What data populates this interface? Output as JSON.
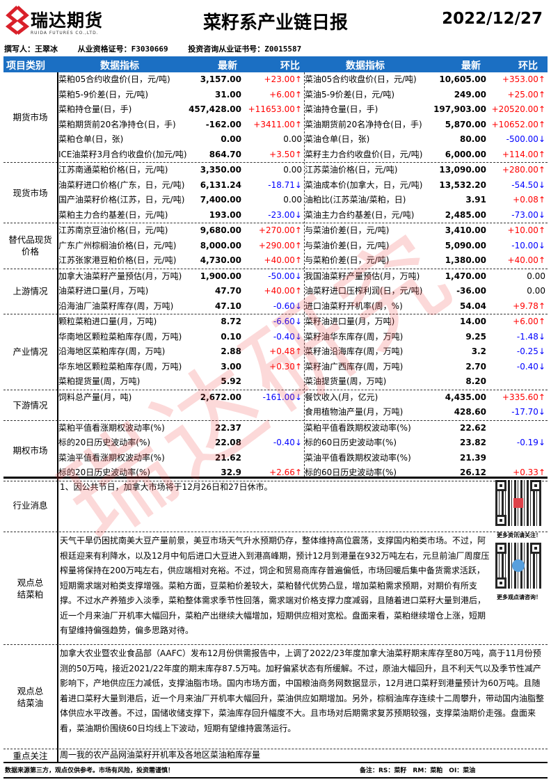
{
  "header": {
    "logo_cn": "瑞达期货",
    "logo_en": "RUIDA FUTURES CO.,LTD.",
    "title": "菜籽系产业链日报",
    "date": "2022/12/27"
  },
  "authors": {
    "writer": "撰写人：王翠冰",
    "license": "从业资格证号：F3030669",
    "advisor": "投资咨询从业证书号：Z0015587"
  },
  "columns": {
    "category": "项目类别",
    "indicator": "数据指标",
    "latest": "最新",
    "change": "环比",
    "indicator2": "数据指标",
    "latest2": "最新",
    "change2": "环比"
  },
  "colors": {
    "header_bg": "#1b6fc3",
    "up": "#ff0000",
    "down": "#0000ff"
  },
  "sections": [
    {
      "label": "期货市场",
      "rows": [
        [
          "菜粕05合约收盘价(日，元/吨)",
          "3,157.00",
          "+23.00↑",
          "菜油05合约收盘价(日，元/吨)",
          "10,605.00",
          "+353.00↑"
        ],
        [
          "菜粕5-9价差(日，元/吨)",
          "31.00",
          "+6.00↑",
          "菜油5-9价差(日，元/吨)",
          "249.00",
          "+25.00↑"
        ],
        [
          "菜粕持仓量(日，手)",
          "457,428.00",
          "+11653.00↑",
          "菜油持仓量(日，手)",
          "197,903.00",
          "+20520.00↑"
        ],
        [
          "菜粕期货前20名净持仓(日，手)",
          "-162.00",
          "+3411.00↑",
          "菜油期货前20名净持仓(日，手)",
          "5,870.00",
          "+10652.00↑"
        ],
        [
          "菜粕仓单(日，张)",
          "0.00",
          "0.00",
          "菜油仓单(日，张)",
          "80.00",
          "-500.00↓"
        ],
        [
          "ICE油菜籽3月合约收盘价(加元/吨)",
          "864.70",
          "+3.50↑",
          "菜籽主力合约收盘价(日，元/吨)",
          "6,000.00",
          "+114.00↑"
        ]
      ]
    },
    {
      "label": "现货市场",
      "rows": [
        [
          "江苏南通菜粕价格(日，元/吨)",
          "3,350.00",
          "0.00",
          "江苏菜油价格(日，元/吨)",
          "13,090.00",
          "+280.00↑"
        ],
        [
          "油菜籽进口价格(广东，日，元/吨)",
          "6,131.24",
          "-18.71↓",
          "菜油成本价(加拿大，日，元/吨)",
          "13,532.20",
          "-54.50↓"
        ],
        [
          "国产油菜籽价格(江苏，日，元/吨)",
          "7,400.00",
          "0.00",
          "油粕比(江苏菜油/菜粕，日)",
          "3.91",
          "+0.08↑"
        ],
        [
          "菜粕主力合约基差(日，元/吨)",
          "193.00",
          "-23.00↓",
          "菜油主力合约基差(日，元/吨)",
          "2,485.00",
          "-73.00↓"
        ]
      ]
    },
    {
      "label": "替代品现货价格",
      "rows": [
        [
          "江苏南京豆油价格(日，元/吨)",
          "9,680.00",
          "+270.00↑",
          "与菜油价差(日，元/吨)",
          "3,410.00",
          "+10.00↑"
        ],
        [
          "广东广州棕榈油价格(日，元/吨)",
          "8,000.00",
          "+290.00↑",
          "与菜油价差(日，元/吨)",
          "5,090.00",
          "-10.00↓"
        ],
        [
          "江苏张家港豆粕价格(日，元/吨)",
          "4,730.00",
          "+40.00↑",
          "与菜粕价差(日，元/吨)",
          "1,380.00",
          "+40.00↑"
        ]
      ]
    },
    {
      "label": "上游情况",
      "rows": [
        [
          "加拿大油菜籽产量预估(月，万吨)",
          "1,900.00",
          "-50.00↓",
          "我国油菜籽产量预估(月，万吨)",
          "1,470.00",
          "0.00"
        ],
        [
          "油菜籽进口量(月，万吨)",
          "47.70",
          "+40.00↑",
          "油菜籽进口压榨利润(日，元/吨)",
          "-36.00",
          "0.00"
        ],
        [
          "沿海油厂油菜籽库存(周，万吨)",
          "47.10",
          "-0.60↓",
          "进口油菜籽开机率(周，%)",
          "54.04",
          "+9.78↑"
        ]
      ]
    },
    {
      "label": "产业情况",
      "rows": [
        [
          "颗粒菜粕进口量(月，万吨)",
          "8.72",
          "-6.60↓",
          "菜籽油进口量(月，万吨)",
          "14.00",
          "+6.00↑"
        ],
        [
          "华南地区颗粒菜粕库存(周，万吨)",
          "0.10",
          "-0.40↓",
          "菜籽油华东库存(周，万吨)",
          "9.25",
          "-1.48↓"
        ],
        [
          "沿海地区菜粕库存(周，万吨)",
          "2.88",
          "+0.48↑",
          "菜籽油沿海库存(周，万吨)",
          "3.2",
          "-0.25↓"
        ],
        [
          "华东地区颗粒菜粕库存(周，万吨)",
          "3.00",
          "+0.30↑",
          "菜籽油广西库存(周，万吨)",
          "2.70",
          "-0.40↓"
        ],
        [
          "菜粕提货量(周，万吨)",
          "5.92",
          "",
          "菜油提货量(周，万吨)",
          "8.20",
          ""
        ]
      ]
    },
    {
      "label": "下游情况",
      "rows": [
        [
          "饲料总产量(月，吨)",
          "2,672.00",
          "-161.00↓",
          "餐饮收入(月，亿元)",
          "4,435.00",
          "+335.60↑"
        ],
        [
          "",
          "",
          "",
          "食用植物油产量(月，万吨)",
          "428.60",
          "-17.70↓"
        ]
      ]
    },
    {
      "label": "期权市场",
      "rows": [
        [
          "菜粕平值看涨期权波动率(%)",
          "22.37",
          "",
          "菜粕平值看跌期权波动率(%)",
          "22.62",
          ""
        ],
        [
          "标的20日历史波动率(%)",
          "22.08",
          "-0.40↓",
          "标的60日历史波动率(%)",
          "23.82",
          "-0.19↓"
        ],
        [
          "菜油平值看涨期权波动率(%)",
          "21.62",
          "",
          "菜油平值看跌期权波动率(%)",
          "21.39",
          ""
        ],
        [
          "标的20日历史波动率(%)",
          "32.9",
          "+2.66↑",
          "标的60日历史波动率(%)",
          "26.12",
          "+0.33↑"
        ]
      ]
    }
  ],
  "news": {
    "label": "行业消息",
    "text": "1、因公共节日，加拿大市场将于12月26日和27日休市。"
  },
  "meal_view": {
    "label": "观点总结菜粕",
    "text": "天气干旱仍困扰南美大豆产量前景，美豆市场天气升水预期仍存，整体维持高位震荡，支撑国内粕类市场。不过，阿根廷迎来有利降水，以及12月中旬后进口大豆进入到港高峰期，预计12月到港量在932万吨左右，元旦前油厂周度压榨量将保持在200万吨左右，供应端相对充裕。不过，饲企和贸易商库存普遍偏低，市场回暖后集中备货需求活跃，短期需求端对粕类支撑增强。菜粕方面，豆菜粕价差较大，菜粕替代优势凸显，增加菜粕需求预期，对期价有所支撑。不过水产养殖步入淡季，菜粕整体需求季节性回落，需求端对价格支撑力度减弱，且随着进口菜籽大量到港后，近一个月来油厂开机率大幅回升，菜粕产出继续大幅增加，短期供应相对宽松。盘面来看，菜粕继续增仓上涨，短期有望维持偏强趋势，偏多思路对待。"
  },
  "oil_view": {
    "label": "观点总结菜油",
    "text": "加拿大农业暨农业食品部（AAFC）发布12月份供需报告中，上调了2022/23年度加拿大油菜籽期末库存至80万吨，高于11月份预测的50万吨，接近2021/22年度的期末库存87.5万吨。加籽偏紧状态有所缓解。不过，原油大幅回升，且不利天气以及季节性减产影响下，产地供应压力减低，支撑油脂市场。国内市场方面，中国粮油商务网数据显示，12月进口菜籽到港量预计为60万吨。且随着进口菜籽大量到港后，近一个月来油厂开机率大幅回升，菜油供应如期增加。另外，棕榈油库存连续十二周攀升，带动国内油脂整体供应水平改善。不过，国储收储支撑下，菜油库存回升幅度不大。且市场对后期需求复苏预期较强，支撑菜油期价走强。盘面来看，菜油期价围绕60日均线上下波动，短期有望维持震荡运行。"
  },
  "focus": {
    "label": "重点关注",
    "text": "周一我的农产品网油菜籽开机率及各地区菜油粕库存量"
  },
  "qr": {
    "caption1": "更多资讯请关注！",
    "caption2": "更多观点请咨询！"
  },
  "footer": {
    "disclaimer": "数据来源第三方，观点仅供参考。市场有风险，投资需谨慎！",
    "note": "备注：RS：菜籽　RM：菜粕　OI：菜油"
  },
  "watermark": "瑞达研究"
}
